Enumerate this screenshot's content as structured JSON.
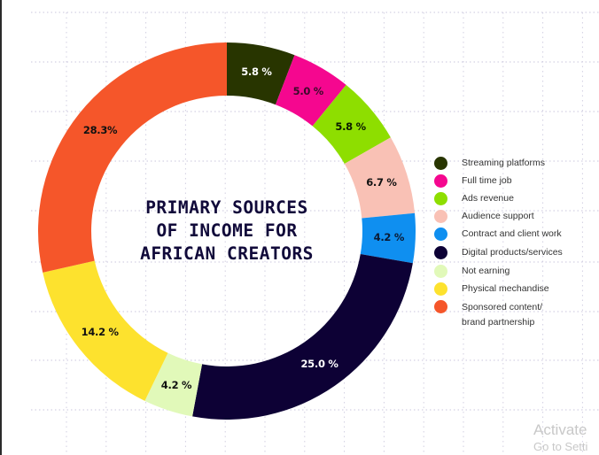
{
  "chart_data": {
    "type": "pie",
    "variant": "donut",
    "title": "PRIMARY SOURCES OF INCOME FOR AFRICAN CREATORS",
    "title_lines": [
      "PRIMARY SOURCES",
      "OF INCOME FOR",
      "AFRICAN CREATORS"
    ],
    "start_angle": "12 o'clock",
    "direction": "clockwise",
    "unit": "%",
    "legend_position": "right",
    "grid": true,
    "categories": [
      "Streaming platforms",
      "Full time job",
      "Ads revenue",
      "Audience support",
      "Contract and client work",
      "Digital products/services",
      "Not earning",
      "Physical mechandise",
      "Sponsored content/ brand partnership"
    ],
    "values": [
      5.8,
      5.0,
      5.8,
      6.7,
      4.2,
      25.0,
      4.2,
      14.2,
      28.3
    ],
    "labels": [
      "5.8 %",
      "5.0 %",
      "5.8 %",
      "6.7 %",
      "4.2 %",
      "25.0 %",
      "4.2 %",
      "14.2 %",
      "28.3%"
    ],
    "colors": [
      "#283500",
      "#f5078f",
      "#8ede00",
      "#f9c1b5",
      "#0f8ff0",
      "#0d0135",
      "#e1f9b9",
      "#fde22e",
      "#f5562a"
    ],
    "label_colors": [
      "#ffffff",
      "#3a0a2a",
      "#0b1a00",
      "#111111",
      "#0b1a33",
      "#ffffff",
      "#111111",
      "#111111",
      "#111111"
    ]
  },
  "legend": {
    "items": [
      {
        "label": "Streaming platforms",
        "color": "#283500"
      },
      {
        "label": "Full time job",
        "color": "#f5078f"
      },
      {
        "label": "Ads revenue",
        "color": "#8ede00"
      },
      {
        "label": "Audience support",
        "color": "#f9c1b5"
      },
      {
        "label": "Contract and client work",
        "color": "#0f8ff0"
      },
      {
        "label": "Digital products/services",
        "color": "#0d0135"
      },
      {
        "label": "Not earning",
        "color": "#e1f9b9"
      },
      {
        "label": "Physical mechandise",
        "color": "#fde22e"
      },
      {
        "label": "Sponsored content/",
        "label2": "brand partnership",
        "color": "#f5562a"
      }
    ]
  },
  "watermark": {
    "line1": "Activate",
    "line2": "Go to Setti"
  }
}
